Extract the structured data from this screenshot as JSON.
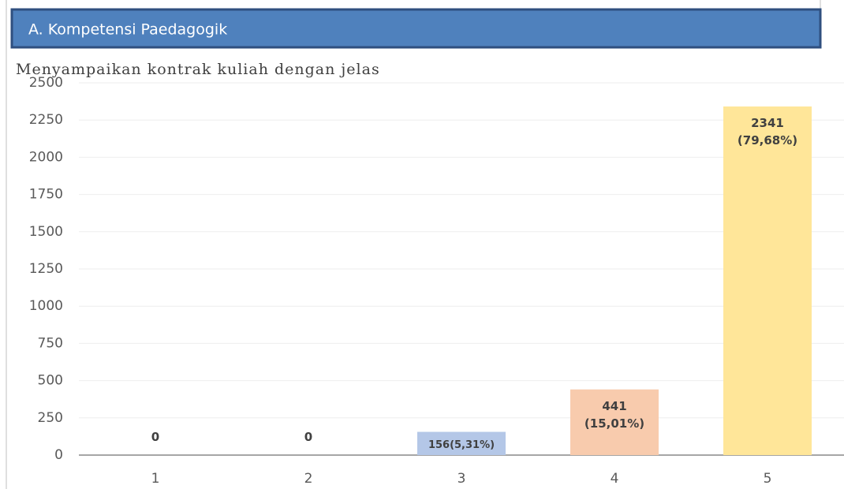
{
  "header": {
    "title": "A. Kompetensi Paedagogik"
  },
  "chart_data": {
    "type": "bar",
    "title": "Menyampaikan kontrak kuliah dengan jelas",
    "categories": [
      "1",
      "2",
      "3",
      "4",
      "5"
    ],
    "values": [
      0,
      0,
      156,
      441,
      2341
    ],
    "value_labels": [
      "0",
      "0",
      "156(5,31%)",
      "441\n(15,01%)",
      "2341\n(79,68%)"
    ],
    "colors": [
      "#4472c4",
      "#ed7d31",
      "#b4c7e7",
      "#f8cbad",
      "#ffe699"
    ],
    "ylim": [
      0,
      2500
    ],
    "yticks": [
      0,
      250,
      500,
      750,
      1000,
      1250,
      1500,
      1750,
      2000,
      2250,
      2500
    ],
    "grid": true
  }
}
